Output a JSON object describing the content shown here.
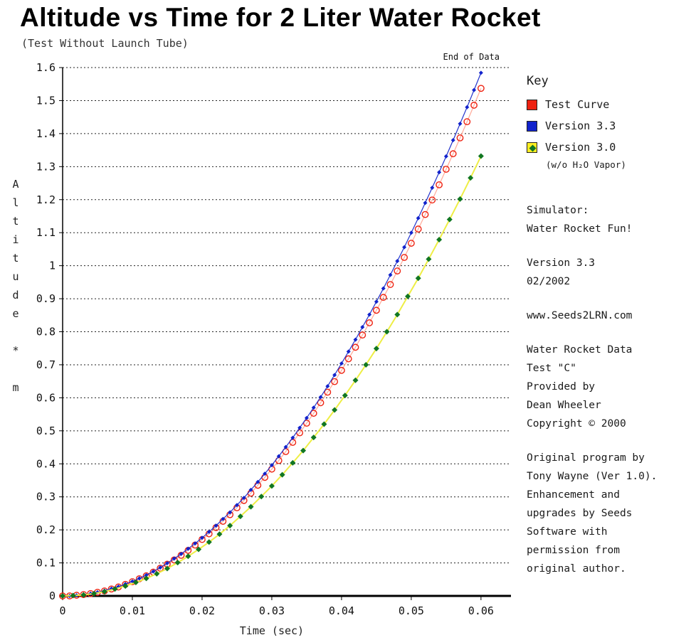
{
  "page": {
    "title": "Altitude vs Time for 2 Liter Water Rocket",
    "subtitle": "(Test Without Launch Tube)"
  },
  "chart_data": {
    "type": "scatter",
    "title": "Altitude vs Time for 2 Liter Water Rocket",
    "subtitle": "(Test Without Launch Tube)",
    "xlabel": "Time (sec)",
    "ylabel": "Altitude * m",
    "xlim": [
      0,
      0.0643
    ],
    "ylim": [
      0,
      1.6
    ],
    "x_ticks": [
      0,
      0.01,
      0.02,
      0.03,
      0.04,
      0.05,
      0.06
    ],
    "x_tick_labels": [
      "0",
      "0.01",
      "0.02",
      "0.03",
      "0.04",
      "0.05",
      "0.06"
    ],
    "y_ticks": [
      0,
      0.1,
      0.2,
      0.3,
      0.4,
      0.5,
      0.6,
      0.7,
      0.8,
      0.9,
      1,
      1.1,
      1.2,
      1.3,
      1.4,
      1.5,
      1.6
    ],
    "grid": "horizontal-dotted",
    "legend_position": "right",
    "annotation": "End of Data",
    "series": [
      {
        "name": "Test Curve",
        "marker": "open-circle",
        "marker_color": "#ee2211",
        "line_color": "#ffaa99",
        "x_start": 0,
        "x_step": 0.001,
        "y": [
          0,
          0,
          0.002,
          0.004,
          0.007,
          0.011,
          0.015,
          0.021,
          0.027,
          0.035,
          0.043,
          0.052,
          0.061,
          0.072,
          0.084,
          0.096,
          0.109,
          0.123,
          0.138,
          0.154,
          0.171,
          0.188,
          0.207,
          0.226,
          0.246,
          0.267,
          0.289,
          0.311,
          0.335,
          0.359,
          0.384,
          0.41,
          0.437,
          0.465,
          0.494,
          0.523,
          0.553,
          0.585,
          0.617,
          0.649,
          0.683,
          0.718,
          0.753,
          0.79,
          0.827,
          0.865,
          0.904,
          0.943,
          0.984,
          1.025,
          1.068,
          1.111,
          1.155,
          1.199,
          1.245,
          1.292,
          1.339,
          1.387,
          1.436,
          1.486,
          1.537
        ]
      },
      {
        "name": "Version 3.3",
        "marker": "diamond-small",
        "marker_color": "#1122cc",
        "line_color": "#2233cc",
        "x_start": 0,
        "x_step": 0.001,
        "y": [
          0,
          0,
          0.002,
          0.004,
          0.007,
          0.011,
          0.016,
          0.022,
          0.028,
          0.036,
          0.044,
          0.053,
          0.063,
          0.074,
          0.086,
          0.099,
          0.113,
          0.127,
          0.143,
          0.159,
          0.176,
          0.194,
          0.213,
          0.233,
          0.253,
          0.275,
          0.297,
          0.321,
          0.345,
          0.37,
          0.396,
          0.423,
          0.451,
          0.479,
          0.509,
          0.539,
          0.57,
          0.602,
          0.635,
          0.669,
          0.704,
          0.74,
          0.776,
          0.814,
          0.852,
          0.891,
          0.931,
          0.972,
          1.014,
          1.056,
          1.1,
          1.144,
          1.19,
          1.236,
          1.283,
          1.331,
          1.38,
          1.43,
          1.48,
          1.532,
          1.584
        ]
      },
      {
        "name": "Version 3.0 (w/o H2O Vapor)",
        "marker": "diamond",
        "marker_color": "#117722",
        "line_color": "#eeee44",
        "x_start": 0,
        "x_step": 0.0015,
        "y": [
          0,
          0.001,
          0.003,
          0.007,
          0.013,
          0.021,
          0.03,
          0.041,
          0.053,
          0.067,
          0.083,
          0.101,
          0.12,
          0.141,
          0.163,
          0.187,
          0.213,
          0.241,
          0.27,
          0.301,
          0.333,
          0.367,
          0.403,
          0.44,
          0.48,
          0.52,
          0.563,
          0.607,
          0.653,
          0.7,
          0.749,
          0.8,
          0.852,
          0.907,
          0.962,
          1.02,
          1.079,
          1.14,
          1.202,
          1.266,
          1.332
        ]
      }
    ]
  },
  "legend": {
    "title": "Key",
    "items": [
      {
        "label": "Test Curve",
        "swatch": "#ee2211"
      },
      {
        "label": "Version 3.3",
        "swatch": "#1122cc"
      },
      {
        "label": "Version 3.0",
        "swatch": "#ffee22",
        "swatch_dot": "#117722",
        "note": "(w/o H₂O Vapor)"
      }
    ]
  },
  "info_panel": {
    "blocks": [
      [
        "Simulator:",
        "Water Rocket Fun!"
      ],
      [
        "Version 3.3",
        "02/2002"
      ],
      [
        "www.Seeds2LRN.com"
      ],
      [
        "Water Rocket Data",
        "Test \"C\"",
        "Provided by",
        "Dean Wheeler",
        "Copyright © 2000"
      ],
      [
        "Original program by",
        "Tony Wayne (Ver 1.0).",
        "Enhancement and",
        "upgrades by Seeds",
        "Software with",
        "permission from",
        "original author."
      ]
    ]
  }
}
